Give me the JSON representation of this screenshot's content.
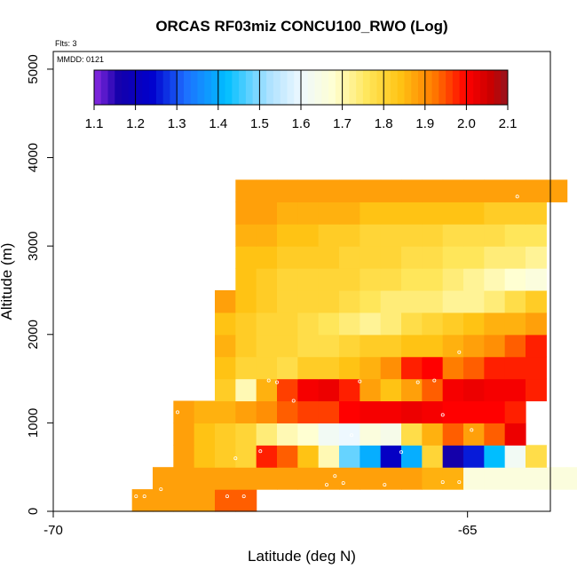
{
  "chart_data": {
    "type": "heatmap",
    "title": "ORCAS RF03miz CONCU100_RWO (Log)",
    "annotations": [
      "Flts: 3",
      "MMDD: 0121"
    ],
    "xlabel": "Latitude (deg N)",
    "ylabel": "Altitude (m)",
    "xlim": [
      -70,
      -64
    ],
    "ylim": [
      0,
      5200
    ],
    "x_ticks": [
      -70,
      -65
    ],
    "x_tick_labels": [
      "-70",
      "-65"
    ],
    "y_ticks": [
      0,
      1000,
      2000,
      3000,
      4000,
      5000
    ],
    "y_tick_labels": [
      "0",
      "1000",
      "2000",
      "3000",
      "4000",
      "5000"
    ],
    "grid": false,
    "colorbar": {
      "range": [
        1.1,
        2.1
      ],
      "ticks": [
        1.1,
        1.2,
        1.3,
        1.4,
        1.5,
        1.6,
        1.7,
        1.8,
        1.9,
        2.0,
        2.1
      ],
      "tick_labels": [
        "1.1",
        "1.2",
        "1.3",
        "1.4",
        "1.5",
        "1.6",
        "1.7",
        "1.8",
        "1.9",
        "2.0",
        "2.1"
      ],
      "placement": "top"
    },
    "grid_x_start": -69.3,
    "grid_dx": 0.25,
    "grid_y_start": 0,
    "grid_dy": 250,
    "cells": [
      [
        0,
        [
          -1,
          1.88,
          1.88,
          1.88,
          1.88,
          1.94,
          1.94
        ]
      ],
      [
        250,
        [
          -1,
          -1,
          1.88,
          1.88,
          1.88,
          1.88,
          1.88,
          1.88,
          1.88,
          1.88,
          1.88,
          1.88,
          1.88,
          1.88,
          1.88,
          1.86,
          1.86,
          1.66,
          1.66,
          1.66,
          1.66,
          1.66,
          1.66,
          1.66,
          1.46
        ]
      ],
      [
        500,
        [
          -1,
          -1,
          -1,
          1.88,
          1.84,
          1.82,
          1.8,
          1.98,
          1.94,
          1.84,
          1.7,
          1.48,
          1.4,
          1.22,
          1.4,
          1.8,
          1.16,
          1.26,
          1.42,
          1.62,
          1.78
        ]
      ],
      [
        750,
        [
          -1,
          -1,
          -1,
          1.88,
          1.84,
          1.82,
          1.8,
          1.74,
          1.7,
          1.68,
          1.62,
          1.6,
          1.66,
          1.64,
          1.78,
          1.86,
          1.94,
          1.88,
          1.94,
          2.02
        ]
      ],
      [
        1000,
        [
          -1,
          -1,
          -1,
          1.88,
          1.86,
          1.86,
          1.88,
          1.9,
          1.94,
          1.96,
          1.96,
          2.0,
          2.01,
          2.01,
          2.02,
          2.01,
          2.0,
          2.0,
          2.0,
          1.98
        ]
      ],
      [
        1250,
        [
          -1,
          -1,
          -1,
          -1,
          -1,
          1.82,
          1.7,
          1.86,
          1.96,
          2.01,
          2.02,
          1.98,
          1.88,
          1.84,
          1.88,
          1.94,
          2.01,
          2.02,
          2.01,
          2.01,
          1.98
        ]
      ],
      [
        1500,
        [
          -1,
          -1,
          -1,
          -1,
          -1,
          1.84,
          1.8,
          1.8,
          1.78,
          1.82,
          1.82,
          1.84,
          1.86,
          1.9,
          1.98,
          2.0,
          1.92,
          1.94,
          1.98,
          1.98,
          1.98
        ]
      ],
      [
        1750,
        [
          -1,
          -1,
          -1,
          -1,
          -1,
          1.86,
          1.82,
          1.8,
          1.8,
          1.78,
          1.78,
          1.8,
          1.82,
          1.82,
          1.84,
          1.84,
          1.86,
          1.88,
          1.9,
          1.94,
          1.98
        ]
      ],
      [
        2000,
        [
          -1,
          -1,
          -1,
          -1,
          -1,
          1.84,
          1.82,
          1.8,
          1.8,
          1.78,
          1.76,
          1.74,
          1.72,
          1.74,
          1.78,
          1.8,
          1.82,
          1.84,
          1.86,
          1.86,
          1.88
        ]
      ],
      [
        2250,
        [
          -1,
          -1,
          -1,
          -1,
          -1,
          1.88,
          1.84,
          1.82,
          1.8,
          1.8,
          1.8,
          1.78,
          1.76,
          1.74,
          1.74,
          1.74,
          1.72,
          1.72,
          1.74,
          1.78,
          1.82
        ]
      ],
      [
        2500,
        [
          -1,
          -1,
          -1,
          -1,
          -1,
          -1,
          1.84,
          1.82,
          1.8,
          1.8,
          1.8,
          1.8,
          1.78,
          1.78,
          1.76,
          1.76,
          1.74,
          1.72,
          1.7,
          1.68,
          1.66
        ]
      ],
      [
        2750,
        [
          -1,
          -1,
          -1,
          -1,
          -1,
          -1,
          1.84,
          1.84,
          1.82,
          1.82,
          1.82,
          1.8,
          1.8,
          1.8,
          1.78,
          1.78,
          1.76,
          1.76,
          1.74,
          1.74,
          1.72
        ]
      ],
      [
        3000,
        [
          -1,
          -1,
          -1,
          -1,
          -1,
          -1,
          1.86,
          1.86,
          1.84,
          1.84,
          1.82,
          1.82,
          1.8,
          1.8,
          1.8,
          1.8,
          1.78,
          1.78,
          1.78,
          1.76,
          1.76
        ]
      ],
      [
        3250,
        [
          -1,
          -1,
          -1,
          -1,
          -1,
          -1,
          1.88,
          1.88,
          1.86,
          1.86,
          1.86,
          1.86,
          1.84,
          1.84,
          1.84,
          1.84,
          1.84,
          1.84,
          1.82,
          1.82,
          1.82
        ]
      ],
      [
        3500,
        [
          -1,
          -1,
          -1,
          -1,
          -1,
          -1,
          1.88,
          1.88,
          1.88,
          1.88,
          1.88,
          1.88,
          1.88,
          1.88,
          1.88,
          1.88,
          1.88,
          1.88,
          1.88,
          1.88,
          1.88,
          1.88
        ]
      ]
    ],
    "flight_points": [
      [
        -69.0,
        170
      ],
      [
        -68.9,
        170
      ],
      [
        -68.7,
        250
      ],
      [
        -68.5,
        1120
      ],
      [
        -68.2,
        3730
      ],
      [
        -67.9,
        170
      ],
      [
        -67.7,
        170
      ],
      [
        -67.8,
        600
      ],
      [
        -67.5,
        680
      ],
      [
        -67.4,
        1480
      ],
      [
        -67.3,
        1460
      ],
      [
        -67.1,
        1250
      ],
      [
        -66.7,
        300
      ],
      [
        -66.6,
        400
      ],
      [
        -66.5,
        320
      ],
      [
        -66.4,
        860
      ],
      [
        -66.3,
        1470
      ],
      [
        -66.0,
        300
      ],
      [
        -65.8,
        670
      ],
      [
        -65.6,
        1460
      ],
      [
        -65.4,
        1480
      ],
      [
        -65.3,
        1090
      ],
      [
        -65.3,
        330
      ],
      [
        -65.1,
        330
      ],
      [
        -64.95,
        920
      ],
      [
        -65.1,
        1800
      ],
      [
        -64.4,
        3560
      ]
    ]
  }
}
